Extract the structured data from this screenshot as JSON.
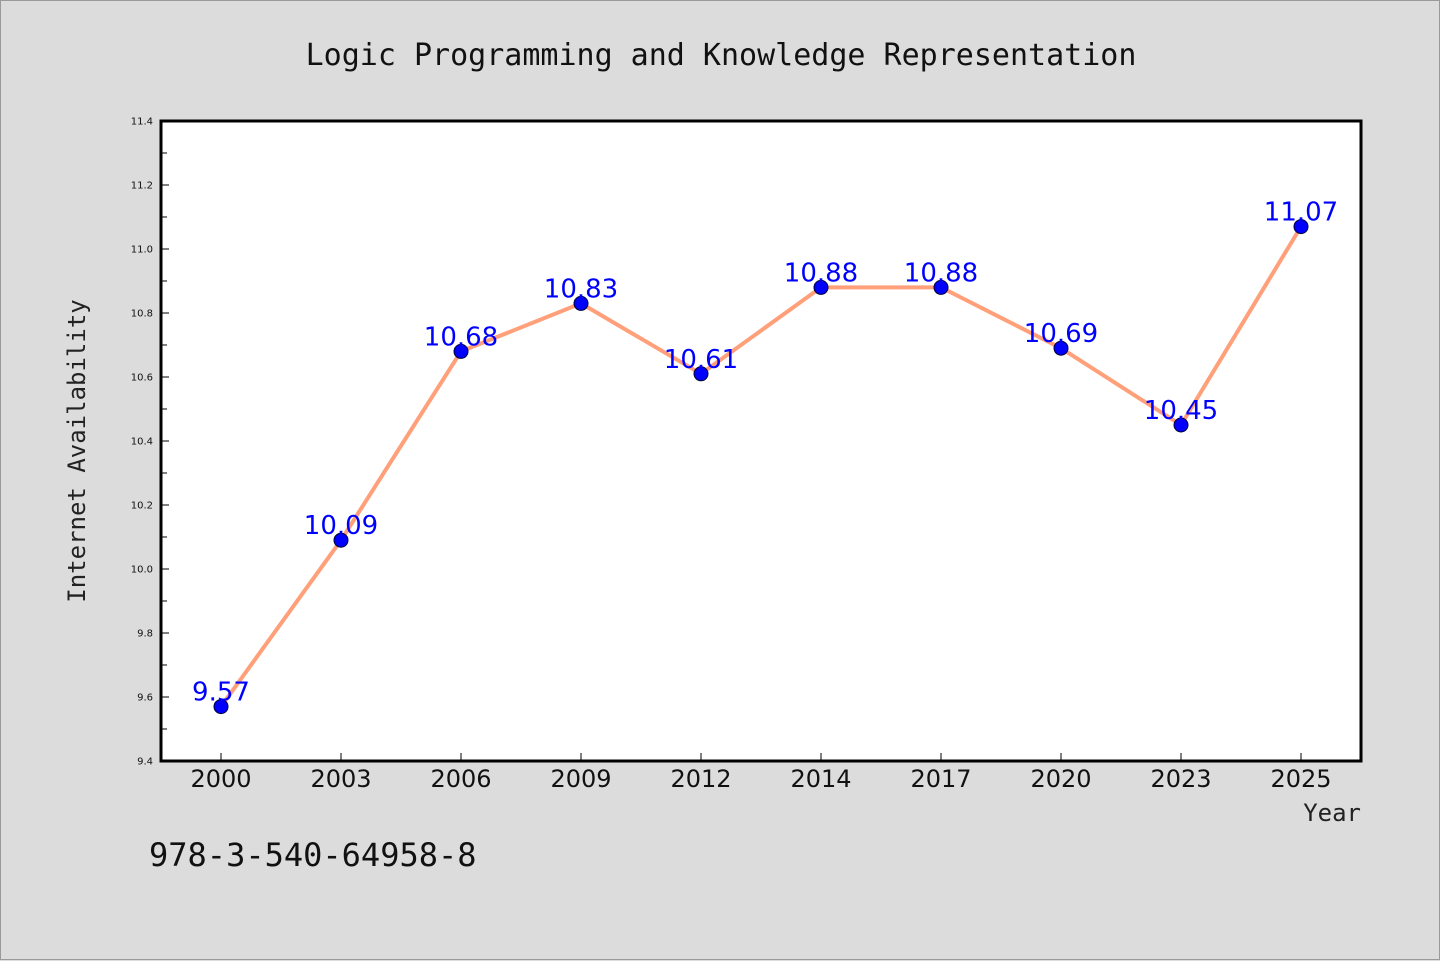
{
  "chart_data": {
    "type": "line",
    "title": "Logic Programming and Knowledge Representation",
    "xlabel": "Year",
    "ylabel": "Internet Availability",
    "categories": [
      "2000",
      "2003",
      "2006",
      "2009",
      "2012",
      "2014",
      "2017",
      "2020",
      "2023",
      "2025"
    ],
    "series": [
      {
        "values": [
          9.57,
          10.09,
          10.68,
          10.83,
          10.61,
          10.88,
          10.88,
          10.69,
          10.45,
          11.07
        ],
        "line_color": "#ffa07a",
        "marker_color": "#0000ff"
      }
    ],
    "data_labels": [
      "9.57",
      "10.09",
      "10.68",
      "10.83",
      "10.61",
      "10.88",
      "10.88",
      "10.69",
      "10.45",
      "11.07"
    ],
    "data_label_color": "#0000ff",
    "ylim": [
      9.4,
      11.4
    ],
    "yticks": [
      9.4,
      9.6,
      9.8,
      10.0,
      10.2,
      10.4,
      10.6,
      10.8,
      11.0,
      11.2,
      11.4
    ],
    "ytick_labels": [
      "9.4",
      "9.6",
      "9.8",
      "10.0",
      "10.2",
      "10.4",
      "10.6",
      "10.8",
      "11.0",
      "11.2",
      "11.4"
    ],
    "grid": false,
    "legend": "none"
  },
  "footnote": "978-3-540-64958-8",
  "colors": {
    "background": "#dcdcdc",
    "plot_background": "#ffffff"
  }
}
